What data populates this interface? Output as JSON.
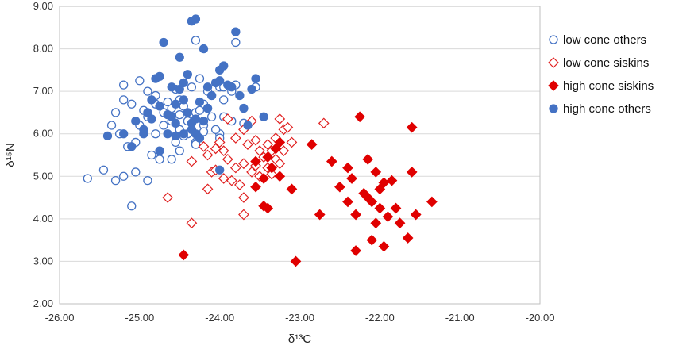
{
  "chart_data": {
    "type": "scatter",
    "xlabel": "δ¹³C",
    "ylabel": "δ¹⁵N",
    "xlim": [
      -26,
      -20
    ],
    "ylim": [
      2,
      9
    ],
    "x_ticks": [
      "-26.00",
      "-25.00",
      "-24.00",
      "-23.00",
      "-22.00",
      "-21.00",
      "-20.00"
    ],
    "y_ticks": [
      "2.00",
      "3.00",
      "4.00",
      "5.00",
      "6.00",
      "7.00",
      "8.00",
      "9.00"
    ],
    "grid": "horizontal",
    "legend_position": "right",
    "series": [
      {
        "name": "low cone others",
        "marker": "circle-open",
        "color": "#4472C4",
        "points": [
          [
            -25.65,
            4.95
          ],
          [
            -25.45,
            5.15
          ],
          [
            -25.3,
            4.9
          ],
          [
            -25.2,
            5.0
          ],
          [
            -25.05,
            5.1
          ],
          [
            -24.9,
            4.9
          ],
          [
            -25.1,
            4.3
          ],
          [
            -25.15,
            5.7
          ],
          [
            -25.05,
            5.8
          ],
          [
            -24.85,
            5.5
          ],
          [
            -24.75,
            5.4
          ],
          [
            -24.6,
            5.4
          ],
          [
            -24.5,
            5.6
          ],
          [
            -25.25,
            6.0
          ],
          [
            -25.35,
            6.2
          ],
          [
            -25.3,
            6.5
          ],
          [
            -25.2,
            6.8
          ],
          [
            -25.1,
            6.7
          ],
          [
            -25.0,
            7.25
          ],
          [
            -25.2,
            7.15
          ],
          [
            -24.9,
            7.0
          ],
          [
            -24.8,
            6.7
          ],
          [
            -24.7,
            6.5
          ],
          [
            -24.6,
            6.3
          ],
          [
            -24.5,
            6.1
          ],
          [
            -24.4,
            6.3
          ],
          [
            -24.3,
            6.5
          ],
          [
            -24.2,
            6.7
          ],
          [
            -24.1,
            6.9
          ],
          [
            -24.0,
            7.1
          ],
          [
            -24.4,
            6.0
          ],
          [
            -24.3,
            5.8
          ],
          [
            -24.2,
            6.2
          ],
          [
            -24.1,
            6.4
          ],
          [
            -24.0,
            6.0
          ],
          [
            -24.35,
            7.1
          ],
          [
            -24.25,
            7.3
          ],
          [
            -24.05,
            7.2
          ],
          [
            -23.95,
            7.1
          ],
          [
            -23.85,
            7.0
          ],
          [
            -23.8,
            7.15
          ],
          [
            -24.5,
            6.8
          ],
          [
            -24.6,
            6.6
          ],
          [
            -24.7,
            6.2
          ],
          [
            -24.8,
            6.0
          ],
          [
            -24.9,
            6.4
          ],
          [
            -25.0,
            6.2
          ],
          [
            -24.55,
            5.8
          ],
          [
            -24.45,
            5.95
          ],
          [
            -24.3,
            5.75
          ],
          [
            -24.2,
            6.05
          ],
          [
            -24.15,
            6.6
          ],
          [
            -23.95,
            6.4
          ],
          [
            -23.85,
            6.3
          ],
          [
            -23.7,
            6.25
          ],
          [
            -24.3,
            8.2
          ],
          [
            -23.8,
            8.15
          ],
          [
            -23.55,
            7.1
          ],
          [
            -24.5,
            6.45
          ],
          [
            -24.0,
            5.9
          ],
          [
            -24.8,
            6.9
          ],
          [
            -24.65,
            6.75
          ],
          [
            -24.55,
            7.05
          ],
          [
            -24.15,
            7.0
          ],
          [
            -23.95,
            6.8
          ],
          [
            -24.05,
            6.1
          ],
          [
            -24.25,
            6.55
          ],
          [
            -24.45,
            6.65
          ],
          [
            -24.95,
            6.55
          ]
        ]
      },
      {
        "name": "low cone siskins",
        "marker": "diamond-open",
        "color": "#E02020",
        "points": [
          [
            -24.65,
            4.5
          ],
          [
            -24.35,
            3.9
          ],
          [
            -24.35,
            5.35
          ],
          [
            -24.2,
            5.7
          ],
          [
            -24.15,
            5.5
          ],
          [
            -24.05,
            5.65
          ],
          [
            -23.95,
            5.6
          ],
          [
            -23.9,
            5.4
          ],
          [
            -23.8,
            5.2
          ],
          [
            -23.7,
            5.3
          ],
          [
            -23.6,
            5.1
          ],
          [
            -23.5,
            5.0
          ],
          [
            -23.4,
            5.2
          ],
          [
            -23.3,
            5.4
          ],
          [
            -23.2,
            5.6
          ],
          [
            -23.1,
            5.8
          ],
          [
            -23.2,
            6.1
          ],
          [
            -23.3,
            5.9
          ],
          [
            -23.4,
            5.75
          ],
          [
            -23.5,
            5.6
          ],
          [
            -23.6,
            6.3
          ],
          [
            -23.7,
            6.1
          ],
          [
            -23.8,
            5.9
          ],
          [
            -23.9,
            6.35
          ],
          [
            -24.0,
            5.8
          ],
          [
            -24.1,
            5.1
          ],
          [
            -24.15,
            4.7
          ],
          [
            -24.05,
            5.15
          ],
          [
            -23.95,
            4.95
          ],
          [
            -23.85,
            4.9
          ],
          [
            -23.75,
            4.8
          ],
          [
            -23.7,
            4.5
          ],
          [
            -23.7,
            4.1
          ],
          [
            -23.55,
            5.25
          ],
          [
            -23.45,
            5.45
          ],
          [
            -23.35,
            5.6
          ],
          [
            -23.25,
            6.35
          ],
          [
            -23.15,
            6.15
          ],
          [
            -22.7,
            6.25
          ],
          [
            -23.25,
            5.3
          ],
          [
            -23.35,
            5.05
          ],
          [
            -23.55,
            5.85
          ],
          [
            -23.65,
            5.75
          ]
        ]
      },
      {
        "name": "high cone siskins",
        "marker": "diamond-filled",
        "color": "#E00000",
        "points": [
          [
            -24.45,
            3.15
          ],
          [
            -23.05,
            3.0
          ],
          [
            -23.4,
            4.25
          ],
          [
            -23.45,
            4.3
          ],
          [
            -23.55,
            4.75
          ],
          [
            -23.45,
            4.95
          ],
          [
            -23.25,
            5.0
          ],
          [
            -23.1,
            4.7
          ],
          [
            -23.35,
            5.2
          ],
          [
            -23.55,
            5.35
          ],
          [
            -23.4,
            5.45
          ],
          [
            -23.3,
            5.65
          ],
          [
            -23.25,
            5.8
          ],
          [
            -22.85,
            5.75
          ],
          [
            -22.75,
            4.1
          ],
          [
            -22.6,
            5.35
          ],
          [
            -22.5,
            4.75
          ],
          [
            -22.4,
            5.2
          ],
          [
            -22.4,
            4.4
          ],
          [
            -22.35,
            4.95
          ],
          [
            -22.3,
            4.1
          ],
          [
            -22.3,
            3.25
          ],
          [
            -22.25,
            6.4
          ],
          [
            -22.2,
            4.6
          ],
          [
            -22.15,
            5.4
          ],
          [
            -22.1,
            4.4
          ],
          [
            -22.1,
            3.5
          ],
          [
            -22.05,
            5.1
          ],
          [
            -22.05,
            3.9
          ],
          [
            -22.0,
            4.25
          ],
          [
            -22.0,
            4.7
          ],
          [
            -21.95,
            4.85
          ],
          [
            -21.95,
            3.35
          ],
          [
            -21.9,
            4.05
          ],
          [
            -21.85,
            4.9
          ],
          [
            -21.8,
            4.25
          ],
          [
            -21.75,
            3.9
          ],
          [
            -21.65,
            3.55
          ],
          [
            -21.6,
            5.1
          ],
          [
            -21.6,
            6.15
          ],
          [
            -21.55,
            4.1
          ],
          [
            -21.35,
            4.4
          ],
          [
            -22.15,
            4.5
          ]
        ]
      },
      {
        "name": "high cone others",
        "marker": "circle-filled",
        "color": "#4472C4",
        "points": [
          [
            -25.4,
            5.95
          ],
          [
            -25.2,
            6.0
          ],
          [
            -25.1,
            5.7
          ],
          [
            -25.05,
            6.3
          ],
          [
            -24.95,
            6.1
          ],
          [
            -24.9,
            6.5
          ],
          [
            -24.85,
            6.8
          ],
          [
            -24.8,
            7.3
          ],
          [
            -24.75,
            7.35
          ],
          [
            -24.7,
            8.15
          ],
          [
            -24.75,
            5.6
          ],
          [
            -24.65,
            6.0
          ],
          [
            -24.6,
            6.4
          ],
          [
            -24.55,
            6.7
          ],
          [
            -24.5,
            7.05
          ],
          [
            -24.45,
            7.2
          ],
          [
            -24.4,
            7.4
          ],
          [
            -24.35,
            8.65
          ],
          [
            -24.3,
            8.7
          ],
          [
            -24.5,
            7.8
          ],
          [
            -24.4,
            6.5
          ],
          [
            -24.35,
            6.1
          ],
          [
            -24.3,
            6.0
          ],
          [
            -24.25,
            5.9
          ],
          [
            -24.2,
            6.3
          ],
          [
            -24.15,
            6.6
          ],
          [
            -24.1,
            6.9
          ],
          [
            -24.05,
            7.2
          ],
          [
            -24.0,
            7.5
          ],
          [
            -23.95,
            7.6
          ],
          [
            -24.2,
            8.0
          ],
          [
            -23.8,
            8.4
          ],
          [
            -23.85,
            7.1
          ],
          [
            -23.75,
            6.9
          ],
          [
            -23.7,
            6.6
          ],
          [
            -23.65,
            6.2
          ],
          [
            -23.6,
            7.05
          ],
          [
            -23.55,
            7.3
          ],
          [
            -23.45,
            6.4
          ],
          [
            -24.45,
            6.0
          ],
          [
            -24.55,
            6.25
          ],
          [
            -24.65,
            6.45
          ],
          [
            -24.75,
            6.65
          ],
          [
            -24.85,
            6.35
          ],
          [
            -24.95,
            6.0
          ],
          [
            -24.6,
            7.1
          ],
          [
            -24.55,
            5.95
          ],
          [
            -24.3,
            6.35
          ],
          [
            -24.25,
            6.75
          ],
          [
            -24.15,
            7.1
          ],
          [
            -24.0,
            7.25
          ],
          [
            -23.9,
            7.15
          ],
          [
            -24.0,
            5.15
          ],
          [
            -24.35,
            6.25
          ],
          [
            -24.45,
            6.8
          ]
        ]
      }
    ]
  }
}
